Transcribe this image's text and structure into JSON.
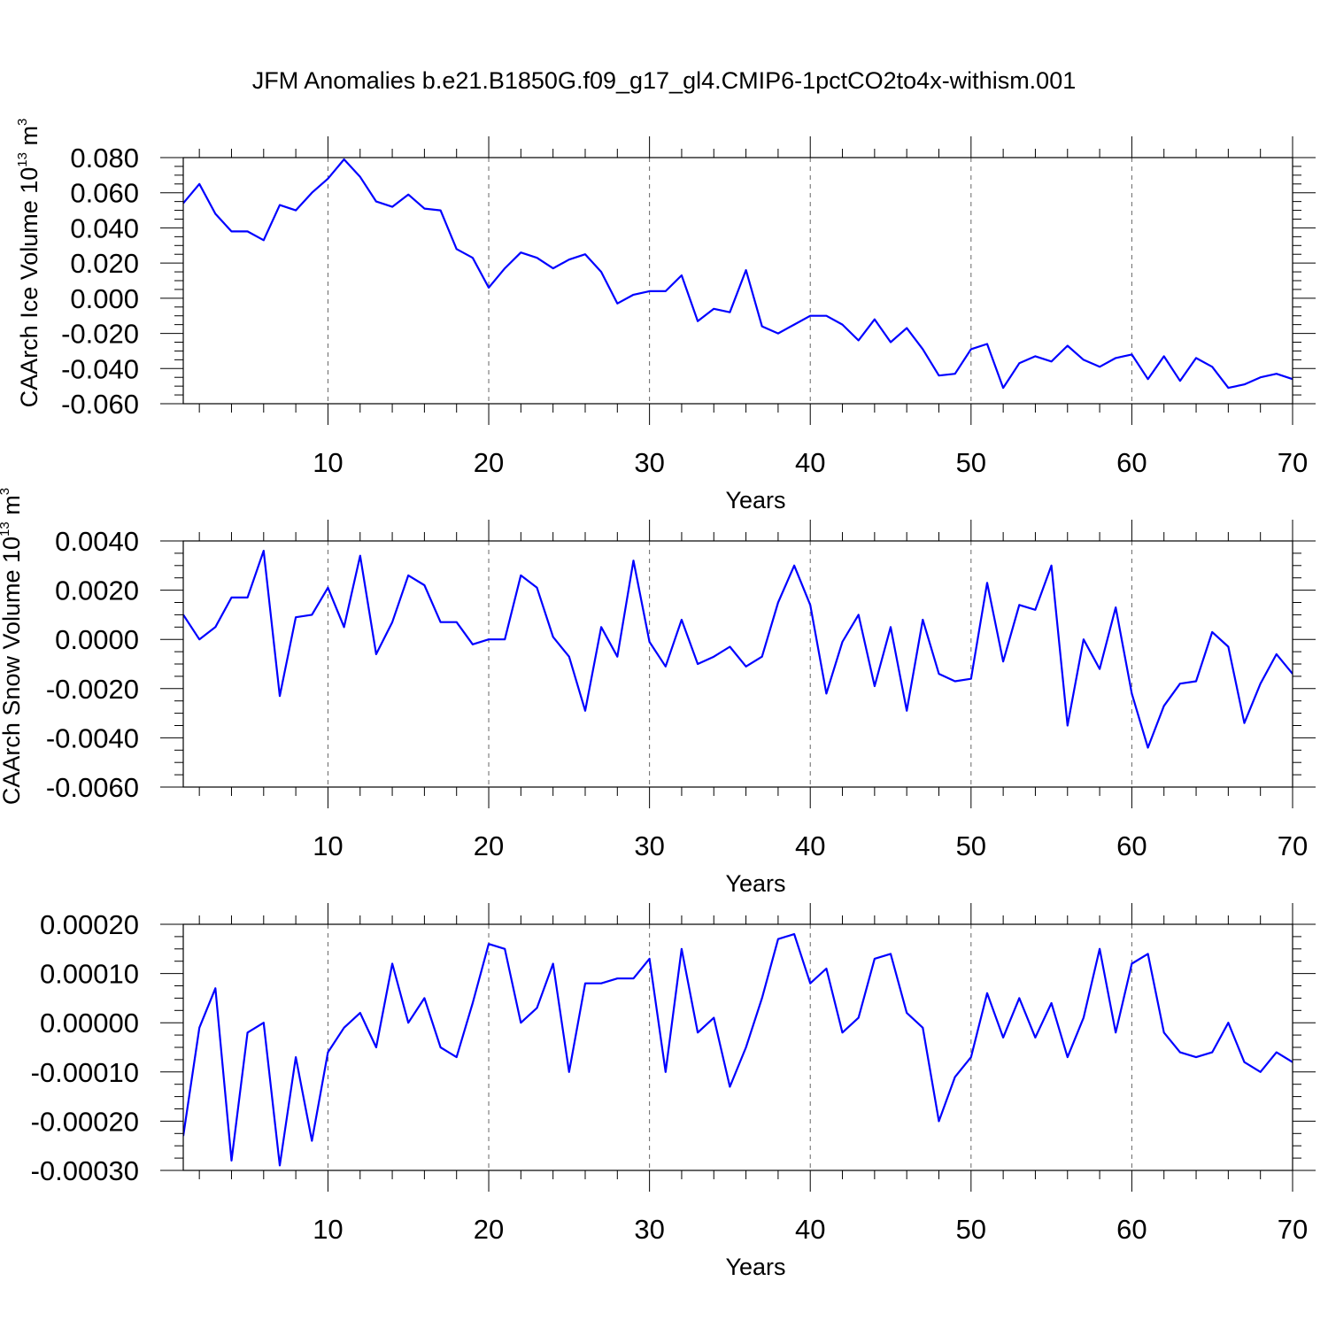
{
  "title": "JFM Anomalies b.e21.B1850G.f09_g17_gl4.CMIP6-1pctCO2to4x-withism.001",
  "colors": {
    "series": "#0000ff",
    "axis": "#000000",
    "grid": "#666666"
  },
  "chart_data": [
    {
      "type": "line",
      "ylabel": "CAArch Ice Volume 10",
      "ylabel_exp": "13",
      "ylabel_unit": "m",
      "ylabel_unit_exp": "3",
      "xlabel": "Years",
      "xlim": [
        1,
        70
      ],
      "ylim": [
        -0.06,
        0.08
      ],
      "xticks": [
        10,
        20,
        30,
        40,
        50,
        60,
        70
      ],
      "xtick_labels": [
        "10",
        "20",
        "30",
        "40",
        "50",
        "60",
        "70"
      ],
      "yticks": [
        -0.06,
        -0.04,
        -0.02,
        0.0,
        0.02,
        0.04,
        0.06,
        0.08
      ],
      "ytick_labels": [
        "-0.060",
        "-0.040",
        "-0.020",
        "0.000",
        "0.020",
        "0.040",
        "0.060",
        "0.080"
      ],
      "grid": "vertical dashed at x ticks",
      "x": [
        1,
        2,
        3,
        4,
        5,
        6,
        7,
        8,
        9,
        10,
        11,
        12,
        13,
        14,
        15,
        16,
        17,
        18,
        19,
        20,
        21,
        22,
        23,
        24,
        25,
        26,
        27,
        28,
        29,
        30,
        31,
        32,
        33,
        34,
        35,
        36,
        37,
        38,
        39,
        40,
        41,
        42,
        43,
        44,
        45,
        46,
        47,
        48,
        49,
        50,
        51,
        52,
        53,
        54,
        55,
        56,
        57,
        58,
        59,
        60,
        61,
        62,
        63,
        64,
        65,
        66,
        67,
        68,
        69,
        70
      ],
      "y": [
        0.054,
        0.065,
        0.048,
        0.038,
        0.038,
        0.033,
        0.053,
        0.05,
        0.06,
        0.068,
        0.079,
        0.069,
        0.055,
        0.052,
        0.059,
        0.051,
        0.05,
        0.028,
        0.023,
        0.006,
        0.017,
        0.026,
        0.023,
        0.017,
        0.022,
        0.025,
        0.015,
        -0.003,
        0.002,
        0.004,
        0.004,
        0.013,
        -0.013,
        -0.006,
        -0.008,
        0.016,
        -0.016,
        -0.02,
        -0.015,
        -0.01,
        -0.01,
        -0.015,
        -0.024,
        -0.012,
        -0.025,
        -0.017,
        -0.029,
        -0.044,
        -0.043,
        -0.029,
        -0.026,
        -0.051,
        -0.037,
        -0.033,
        -0.036,
        -0.027,
        -0.035,
        -0.039,
        -0.034,
        -0.032,
        -0.046,
        -0.033,
        -0.047,
        -0.034,
        -0.039,
        -0.051,
        -0.049,
        -0.045,
        -0.043,
        -0.046
      ]
    },
    {
      "type": "line",
      "ylabel": "CAArch Snow Volume 10",
      "ylabel_exp": "13",
      "ylabel_unit": "m",
      "ylabel_unit_exp": "3",
      "xlabel": "Years",
      "xlim": [
        1,
        70
      ],
      "ylim": [
        -0.006,
        0.004
      ],
      "xticks": [
        10,
        20,
        30,
        40,
        50,
        60,
        70
      ],
      "xtick_labels": [
        "10",
        "20",
        "30",
        "40",
        "50",
        "60",
        "70"
      ],
      "yticks": [
        -0.006,
        -0.004,
        -0.002,
        0.0,
        0.002,
        0.004
      ],
      "ytick_labels": [
        "-0.0060",
        "-0.0040",
        "-0.0020",
        "0.0000",
        "0.0020",
        "0.0040"
      ],
      "grid": "vertical dashed at x ticks",
      "x": [
        1,
        2,
        3,
        4,
        5,
        6,
        7,
        8,
        9,
        10,
        11,
        12,
        13,
        14,
        15,
        16,
        17,
        18,
        19,
        20,
        21,
        22,
        23,
        24,
        25,
        26,
        27,
        28,
        29,
        30,
        31,
        32,
        33,
        34,
        35,
        36,
        37,
        38,
        39,
        40,
        41,
        42,
        43,
        44,
        45,
        46,
        47,
        48,
        49,
        50,
        51,
        52,
        53,
        54,
        55,
        56,
        57,
        58,
        59,
        60,
        61,
        62,
        63,
        64,
        65,
        66,
        67,
        68,
        69,
        70
      ],
      "y": [
        0.001,
        0.0,
        0.0005,
        0.0017,
        0.0017,
        0.0036,
        -0.0023,
        0.0009,
        0.001,
        0.0021,
        0.0005,
        0.0034,
        -0.0006,
        0.0007,
        0.0026,
        0.0022,
        0.0007,
        0.0007,
        -0.0002,
        0.0,
        0.0,
        0.0026,
        0.0021,
        0.0001,
        -0.0007,
        -0.0029,
        0.0005,
        -0.0007,
        0.0032,
        -0.0001,
        -0.0011,
        0.0008,
        -0.001,
        -0.0007,
        -0.0003,
        -0.0011,
        -0.0007,
        0.0015,
        0.003,
        0.0014,
        -0.0022,
        -0.0001,
        0.001,
        -0.0019,
        0.0005,
        -0.0029,
        0.0008,
        -0.0014,
        -0.0017,
        -0.0016,
        0.0023,
        -0.0009,
        0.0014,
        0.0012,
        0.003,
        -0.0035,
        0.0,
        -0.0012,
        0.0013,
        -0.0022,
        -0.0044,
        -0.0027,
        -0.0018,
        -0.0017,
        0.0003,
        -0.0003,
        -0.0034,
        -0.0018,
        -0.0006,
        -0.0014
      ]
    },
    {
      "type": "line",
      "xlabel": "Years",
      "xlim": [
        1,
        70
      ],
      "ylim": [
        -0.0003,
        0.0002
      ],
      "xticks": [
        10,
        20,
        30,
        40,
        50,
        60,
        70
      ],
      "xtick_labels": [
        "10",
        "20",
        "30",
        "40",
        "50",
        "60",
        "70"
      ],
      "yticks": [
        -0.0003,
        -0.0002,
        -0.0001,
        0.0,
        0.0001,
        0.0002
      ],
      "ytick_labels": [
        "-0.00030",
        "-0.00020",
        "-0.00010",
        "0.00000",
        "0.00010",
        "0.00020"
      ],
      "grid": "vertical dashed at x ticks",
      "x": [
        1,
        2,
        3,
        4,
        5,
        6,
        7,
        8,
        9,
        10,
        11,
        12,
        13,
        14,
        15,
        16,
        17,
        18,
        19,
        20,
        21,
        22,
        23,
        24,
        25,
        26,
        27,
        28,
        29,
        30,
        31,
        32,
        33,
        34,
        35,
        36,
        37,
        38,
        39,
        40,
        41,
        42,
        43,
        44,
        45,
        46,
        47,
        48,
        49,
        50,
        51,
        52,
        53,
        54,
        55,
        56,
        57,
        58,
        59,
        60,
        61,
        62,
        63,
        64,
        65,
        66,
        67,
        68,
        69,
        70
      ],
      "y": [
        -0.00023,
        -1e-05,
        7e-05,
        -0.00028,
        -2e-05,
        0.0,
        -0.00029,
        -7e-05,
        -0.00024,
        -6e-05,
        -1e-05,
        2e-05,
        -5e-05,
        0.00012,
        0.0,
        5e-05,
        -5e-05,
        -7e-05,
        4e-05,
        0.00016,
        0.00015,
        0.0,
        3e-05,
        0.00012,
        -0.0001,
        8e-05,
        8e-05,
        9e-05,
        9e-05,
        0.00013,
        -0.0001,
        0.00015,
        -2e-05,
        1e-05,
        -0.00013,
        -5e-05,
        5e-05,
        0.00017,
        0.00018,
        8e-05,
        0.00011,
        -2e-05,
        1e-05,
        0.00013,
        0.00014,
        2e-05,
        -1e-05,
        -0.0002,
        -0.00011,
        -7e-05,
        6e-05,
        -3e-05,
        5e-05,
        -3e-05,
        4e-05,
        -7e-05,
        1e-05,
        0.00015,
        -2e-05,
        0.00012,
        0.00014,
        -2e-05,
        -6e-05,
        -7e-05,
        -6e-05,
        0.0,
        -8e-05,
        -0.0001,
        -6e-05,
        -8e-05
      ]
    }
  ]
}
